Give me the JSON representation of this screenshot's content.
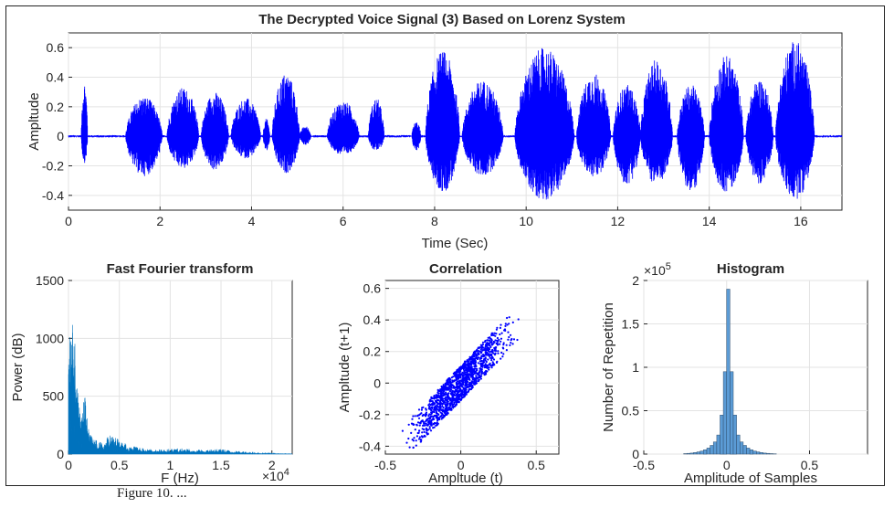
{
  "figure": {
    "caption": "Figure 10. ..."
  },
  "chart_data": [
    {
      "type": "line",
      "id": "waveform",
      "title": "The Decrypted Voice Signal (3) Based on Lorenz System",
      "xlabel": "Time (Sec)",
      "ylabel": "Ampltude",
      "xlim": [
        0,
        16.9
      ],
      "ylim": [
        -0.5,
        0.7
      ],
      "xticks": [
        0,
        2,
        4,
        6,
        8,
        10,
        12,
        14,
        16
      ],
      "yticks": [
        -0.4,
        -0.2,
        0,
        0.2,
        0.4,
        0.6
      ],
      "grid": true,
      "color": "#0000ff",
      "segments": [
        {
          "start": 0.28,
          "end": 0.42,
          "max": 0.38,
          "min": -0.18
        },
        {
          "start": 1.25,
          "end": 2.05,
          "max": 0.27,
          "min": -0.27
        },
        {
          "start": 2.15,
          "end": 2.85,
          "max": 0.33,
          "min": -0.22
        },
        {
          "start": 2.9,
          "end": 3.5,
          "max": 0.3,
          "min": -0.23
        },
        {
          "start": 3.55,
          "end": 4.2,
          "max": 0.26,
          "min": -0.15
        },
        {
          "start": 4.25,
          "end": 4.4,
          "max": 0.12,
          "min": -0.1
        },
        {
          "start": 4.45,
          "end": 5.05,
          "max": 0.43,
          "min": -0.25
        },
        {
          "start": 5.05,
          "end": 5.3,
          "max": 0.07,
          "min": -0.06
        },
        {
          "start": 5.65,
          "end": 6.35,
          "max": 0.24,
          "min": -0.13
        },
        {
          "start": 6.55,
          "end": 6.9,
          "max": 0.26,
          "min": -0.1
        },
        {
          "start": 7.5,
          "end": 7.7,
          "max": 0.1,
          "min": -0.1
        },
        {
          "start": 7.8,
          "end": 8.55,
          "max": 0.58,
          "min": -0.38
        },
        {
          "start": 8.6,
          "end": 9.5,
          "max": 0.38,
          "min": -0.27
        },
        {
          "start": 9.75,
          "end": 11.05,
          "max": 0.6,
          "min": -0.43
        },
        {
          "start": 11.1,
          "end": 11.85,
          "max": 0.43,
          "min": -0.28
        },
        {
          "start": 11.9,
          "end": 12.5,
          "max": 0.35,
          "min": -0.33
        },
        {
          "start": 12.5,
          "end": 13.2,
          "max": 0.52,
          "min": -0.33
        },
        {
          "start": 13.3,
          "end": 13.9,
          "max": 0.35,
          "min": -0.38
        },
        {
          "start": 14.0,
          "end": 14.75,
          "max": 0.55,
          "min": -0.38
        },
        {
          "start": 14.8,
          "end": 15.4,
          "max": 0.39,
          "min": -0.32
        },
        {
          "start": 15.45,
          "end": 16.3,
          "max": 0.65,
          "min": -0.43
        }
      ]
    },
    {
      "type": "area",
      "id": "fft",
      "title": "Fast Fourier transform",
      "xlabel": "F (Hz)",
      "ylabel": "Power (dB)",
      "xlim": [
        0,
        2.2
      ],
      "ylim": [
        0,
        1500
      ],
      "x_multiplier": "×10^4",
      "xticks": [
        0,
        0.5,
        1,
        1.5,
        2
      ],
      "yticks": [
        0,
        500,
        1000,
        1500
      ],
      "grid": true,
      "color": "#0072bd",
      "x": [
        0,
        0.02,
        0.05,
        0.08,
        0.1,
        0.13,
        0.16,
        0.2,
        0.25,
        0.3,
        0.35,
        0.4,
        0.45,
        0.5,
        0.6,
        0.7,
        0.8,
        0.9,
        1.0,
        1.1,
        1.2,
        1.3,
        1.4,
        1.5,
        1.6,
        1.7,
        1.8,
        1.9,
        2.0,
        2.1,
        2.2
      ],
      "values": [
        950,
        1050,
        1200,
        800,
        450,
        320,
        530,
        200,
        130,
        110,
        90,
        180,
        150,
        130,
        70,
        60,
        45,
        40,
        45,
        50,
        45,
        40,
        40,
        45,
        30,
        25,
        15,
        10,
        8,
        5,
        3
      ]
    },
    {
      "type": "scatter",
      "id": "correlation",
      "title": "Correlation",
      "xlabel": "Ampltude (t)",
      "ylabel": "Ampltude (t+1)",
      "xlim": [
        -0.5,
        0.65
      ],
      "ylim": [
        -0.45,
        0.65
      ],
      "xticks": [
        -0.5,
        0,
        0.5
      ],
      "yticks": [
        -0.4,
        -0.2,
        0,
        0.2,
        0.4,
        0.6
      ],
      "grid": true,
      "color": "#0000ff",
      "relation": "y ≈ x",
      "n_points": 1400
    },
    {
      "type": "bar",
      "id": "histogram",
      "title": "Histogram",
      "xlabel": "Amplitude of Samples",
      "ylabel": "Number of Repetition",
      "xlim": [
        -0.5,
        0.85
      ],
      "ylim": [
        0,
        2
      ],
      "y_multiplier": "×10^5",
      "xticks": [
        -0.5,
        0,
        0.5
      ],
      "yticks": [
        0,
        0.5,
        1,
        1.5,
        2
      ],
      "grid": true,
      "color": "#5b9bd5",
      "bin_width": 0.02,
      "x": [
        -0.25,
        -0.23,
        -0.21,
        -0.19,
        -0.17,
        -0.15,
        -0.13,
        -0.11,
        -0.09,
        -0.07,
        -0.05,
        -0.03,
        -0.01,
        0.01,
        0.03,
        0.05,
        0.07,
        0.09,
        0.11,
        0.13,
        0.15,
        0.17,
        0.19,
        0.21,
        0.23,
        0.25,
        0.27,
        0.29
      ],
      "values": [
        0.005,
        0.008,
        0.012,
        0.018,
        0.025,
        0.035,
        0.05,
        0.07,
        0.1,
        0.14,
        0.22,
        0.45,
        0.95,
        1.9,
        0.95,
        0.45,
        0.22,
        0.14,
        0.1,
        0.07,
        0.05,
        0.035,
        0.025,
        0.018,
        0.012,
        0.008,
        0.005,
        0.003
      ]
    }
  ]
}
